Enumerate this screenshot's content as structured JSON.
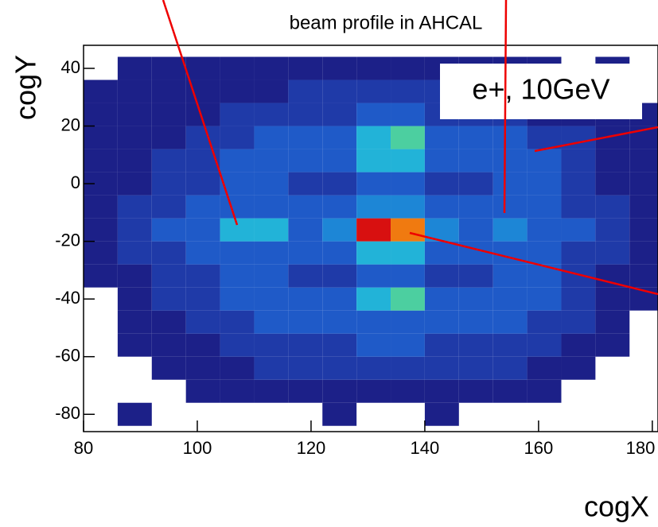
{
  "chart_data": {
    "type": "heatmap",
    "title": "beam profile in AHCAL",
    "x_label": "cogX",
    "y_label": "cogY",
    "annotation": "e+, 10GeV",
    "xlim": [
      80,
      181
    ],
    "ylim": [
      -86,
      48
    ],
    "xticks": [
      80,
      100,
      120,
      140,
      160,
      180
    ],
    "yticks": [
      -80,
      -60,
      -40,
      -20,
      0,
      20,
      40
    ],
    "xbins": [
      80,
      86,
      92,
      98,
      104,
      110,
      116,
      122,
      128,
      134,
      140,
      146,
      152,
      158,
      164,
      170,
      176,
      182
    ],
    "ybins": [
      -84,
      -76,
      -68,
      -60,
      -52,
      -44,
      -36,
      -28,
      -20,
      -12,
      -4,
      4,
      12,
      20,
      28,
      36,
      44
    ],
    "palette": [
      "#1c2088",
      "#1f3aa8",
      "#1f5ac8",
      "#1d86d6",
      "#22b3d8",
      "#4ccfa0",
      "#a6e05a",
      "#f0e020",
      "#f07a10",
      "#d81010"
    ],
    "z": [
      [
        0,
        1,
        0,
        0,
        0,
        0,
        0,
        1,
        0,
        0,
        1,
        0,
        0,
        0,
        0,
        0,
        0
      ],
      [
        0,
        0,
        0,
        1,
        1,
        1,
        1,
        1,
        1,
        1,
        1,
        1,
        1,
        1,
        0,
        0,
        0
      ],
      [
        0,
        0,
        1,
        1,
        1,
        2,
        2,
        2,
        2,
        2,
        2,
        2,
        2,
        1,
        1,
        0,
        0
      ],
      [
        0,
        1,
        1,
        1,
        2,
        2,
        2,
        2,
        3,
        3,
        2,
        2,
        2,
        2,
        1,
        1,
        0
      ],
      [
        0,
        1,
        1,
        2,
        2,
        3,
        3,
        3,
        3,
        3,
        3,
        3,
        3,
        2,
        2,
        1,
        0
      ],
      [
        0,
        1,
        2,
        2,
        3,
        3,
        3,
        3,
        5,
        6,
        3,
        3,
        3,
        3,
        2,
        1,
        1
      ],
      [
        1,
        1,
        2,
        2,
        3,
        3,
        2,
        2,
        3,
        3,
        2,
        2,
        3,
        3,
        2,
        1,
        1
      ],
      [
        1,
        2,
        2,
        3,
        3,
        3,
        3,
        3,
        5,
        5,
        3,
        3,
        3,
        3,
        2,
        2,
        1
      ],
      [
        1,
        2,
        3,
        3,
        5,
        5,
        3,
        4,
        10,
        9,
        4,
        3,
        4,
        3,
        3,
        2,
        1
      ],
      [
        1,
        2,
        2,
        3,
        3,
        3,
        3,
        3,
        4,
        4,
        3,
        3,
        3,
        3,
        2,
        2,
        1
      ],
      [
        1,
        1,
        2,
        2,
        3,
        3,
        2,
        2,
        3,
        3,
        2,
        2,
        3,
        3,
        2,
        1,
        1
      ],
      [
        1,
        1,
        2,
        2,
        3,
        3,
        3,
        3,
        5,
        5,
        3,
        3,
        3,
        3,
        2,
        1,
        1
      ],
      [
        1,
        1,
        1,
        2,
        2,
        3,
        3,
        3,
        5,
        6,
        3,
        3,
        3,
        2,
        2,
        1,
        1
      ],
      [
        1,
        1,
        1,
        1,
        2,
        2,
        2,
        2,
        3,
        3,
        2,
        2,
        2,
        1,
        1,
        1,
        1
      ],
      [
        1,
        1,
        1,
        1,
        1,
        1,
        2,
        2,
        2,
        2,
        2,
        1,
        1,
        1,
        1,
        1,
        0
      ],
      [
        0,
        1,
        1,
        1,
        1,
        1,
        1,
        1,
        1,
        1,
        1,
        1,
        1,
        1,
        0,
        1,
        0
      ]
    ]
  }
}
